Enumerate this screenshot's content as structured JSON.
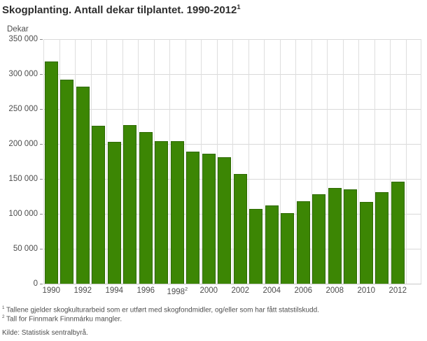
{
  "header": {
    "title": "Skogplanting. Antall dekar tilplantet. 1990-2012",
    "title_sup": "1"
  },
  "footnotes": {
    "fn1_marker": "1",
    "fn1_text": " Tallene gjelder skogkulturarbeid som er utført med skogfondmidler, og/eller som har fått statstilskudd.",
    "fn2_marker": "2",
    "fn2_text": " Tall for Finnmark Finnmárku mangler.",
    "source": "Kilde: Statistisk sentralbyrå."
  },
  "chart_data": {
    "type": "bar",
    "title": "Skogplanting. Antall dekar tilplantet. 1990-2012",
    "unit_label": "Dekar",
    "categories": [
      "1990",
      "1991",
      "1992",
      "1993",
      "1994",
      "1995",
      "1996",
      "1997",
      "1998",
      "1999",
      "2000",
      "2001",
      "2002",
      "2003",
      "2004",
      "2005",
      "2006",
      "2007",
      "2008",
      "2009",
      "2010",
      "2011",
      "2012"
    ],
    "values": [
      318000,
      292000,
      282000,
      226000,
      203000,
      227000,
      217000,
      204000,
      204000,
      189000,
      186000,
      181000,
      157000,
      107000,
      112000,
      101000,
      118000,
      128000,
      137000,
      135000,
      117000,
      131000,
      146000
    ],
    "ylim": [
      0,
      350000
    ],
    "ytick_interval": 50000,
    "ytick_labels_top_to_bottom": [
      "350 000",
      "300 000",
      "250 000",
      "200 000",
      "150 000",
      "100 000",
      "50 000",
      "0"
    ],
    "xticks": [
      {
        "slot": 0,
        "label": "1990"
      },
      {
        "slot": 2,
        "label": "1992"
      },
      {
        "slot": 4,
        "label": "1994"
      },
      {
        "slot": 6,
        "label": "1996"
      },
      {
        "slot": 8,
        "label": "1998",
        "sup": "2"
      },
      {
        "slot": 10,
        "label": "2000"
      },
      {
        "slot": 12,
        "label": "2002"
      },
      {
        "slot": 14,
        "label": "2004"
      },
      {
        "slot": 16,
        "label": "2006"
      },
      {
        "slot": 18,
        "label": "2008"
      },
      {
        "slot": 20,
        "label": "2010"
      },
      {
        "slot": 22,
        "label": "2012"
      }
    ],
    "grid": true,
    "legend": "none",
    "bar_color": "#3c8604",
    "bar_border_color": "#2e6902",
    "grid_color": "#d9d9d9"
  }
}
